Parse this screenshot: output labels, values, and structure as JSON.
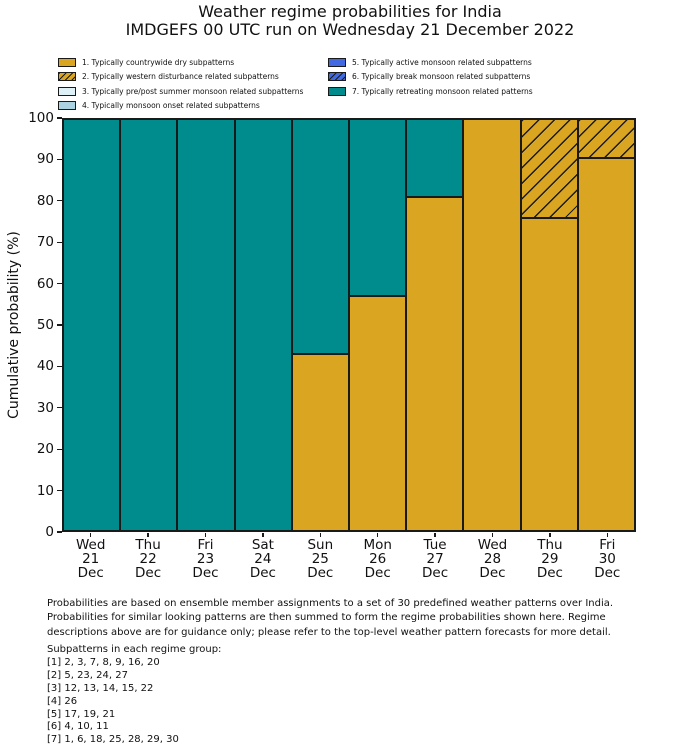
{
  "title": {
    "line1": "Weather regime probabilities for India",
    "line2": "IMDGEFS 00 UTC run on Wednesday 21 December 2022"
  },
  "colors": {
    "edge": "#1a1a1a",
    "text": "#111111",
    "regime1_dry": "#DAA521",
    "regime2_western_disturbance": "#DAA521",
    "regime3_prepost_summer": "#DEF1F7",
    "regime4_monsoon_onset": "#ABD3E2",
    "regime5_active_monsoon": "#4169E1",
    "regime6_break_monsoon": "#4169E1",
    "regime7_retreating_monsoon": "#008C8C"
  },
  "legend": {
    "items": [
      {
        "label": "1. Typically countrywide dry subpatterns",
        "color": "#DAA521",
        "hatch": false,
        "column": 0
      },
      {
        "label": "2. Typically western disturbance related subpatterns",
        "color": "#DAA521",
        "hatch": true,
        "column": 0
      },
      {
        "label": "3. Typically pre/post summer monsoon related subpatterns",
        "color": "#DEF1F7",
        "hatch": false,
        "column": 0
      },
      {
        "label": "4. Typically monsoon onset related subpatterns",
        "color": "#ABD3E2",
        "hatch": false,
        "column": 0
      },
      {
        "label": "5. Typically active monsoon related subpatterns",
        "color": "#4169E1",
        "hatch": false,
        "column": 1
      },
      {
        "label": "6. Typically break monsoon related subpatterns",
        "color": "#4169E1",
        "hatch": true,
        "column": 1
      },
      {
        "label": "7. Typically retreating monsoon related patterns",
        "color": "#008C8C",
        "hatch": false,
        "column": 1
      }
    ]
  },
  "chart_data": {
    "type": "bar",
    "stacked": true,
    "title": "Weather regime probabilities for India",
    "subtitle": "IMDGEFS 00 UTC run on Wednesday 21 December 2022",
    "xlabel": "",
    "ylabel": "Cumulative probability (%)",
    "ylim": [
      0,
      100
    ],
    "ytick_step": 10,
    "grid": false,
    "legend_position": "above-plot, two columns, frameless",
    "categories": [
      "Wed 21 Dec",
      "Thu 22 Dec",
      "Fri 23 Dec",
      "Sat 24 Dec",
      "Sun 25 Dec",
      "Mon 26 Dec",
      "Tue 27 Dec",
      "Wed 28 Dec",
      "Thu 29 Dec",
      "Fri 30 Dec"
    ],
    "x_tick_lines": [
      [
        "Wed",
        "21",
        "Dec"
      ],
      [
        "Thu",
        "22",
        "Dec"
      ],
      [
        "Fri",
        "23",
        "Dec"
      ],
      [
        "Sat",
        "24",
        "Dec"
      ],
      [
        "Sun",
        "25",
        "Dec"
      ],
      [
        "Mon",
        "26",
        "Dec"
      ],
      [
        "Tue",
        "27",
        "Dec"
      ],
      [
        "Wed",
        "28",
        "Dec"
      ],
      [
        "Thu",
        "29",
        "Dec"
      ],
      [
        "Fri",
        "30",
        "Dec"
      ]
    ],
    "series": [
      {
        "name": "1. Typically countrywide dry subpatterns",
        "color": "#DAA521",
        "hatch": false,
        "values": [
          0,
          0,
          0,
          0,
          43,
          57,
          81,
          100,
          76,
          90.5
        ]
      },
      {
        "name": "2. Typically western disturbance related subpatterns",
        "color": "#DAA521",
        "hatch": true,
        "values": [
          0,
          0,
          0,
          0,
          0,
          0,
          0,
          0,
          24,
          9.5
        ]
      },
      {
        "name": "3. Typically pre/post summer monsoon related subpatterns",
        "color": "#DEF1F7",
        "hatch": false,
        "values": [
          0,
          0,
          0,
          0,
          0,
          0,
          0,
          0,
          0,
          0
        ]
      },
      {
        "name": "4. Typically monsoon onset related subpatterns",
        "color": "#ABD3E2",
        "hatch": false,
        "values": [
          0,
          0,
          0,
          0,
          0,
          0,
          0,
          0,
          0,
          0
        ]
      },
      {
        "name": "5. Typically active monsoon related subpatterns",
        "color": "#4169E1",
        "hatch": false,
        "values": [
          0,
          0,
          0,
          0,
          0,
          0,
          0,
          0,
          0,
          0
        ]
      },
      {
        "name": "6. Typically break monsoon related subpatterns",
        "color": "#4169E1",
        "hatch": true,
        "values": [
          0,
          0,
          0,
          0,
          0,
          0,
          0,
          0,
          0,
          0
        ]
      },
      {
        "name": "7. Typically retreating monsoon related patterns",
        "color": "#008C8C",
        "hatch": false,
        "values": [
          100,
          100,
          100,
          100,
          57,
          43,
          19,
          0,
          0,
          0
        ]
      }
    ]
  },
  "footnote": {
    "lines": [
      "Probabilities are based on ensemble member assignments to a set of 30 predefined weather patterns over India.",
      "Probabilities for similar looking patterns are then summed to form the regime probabilities shown here. Regime",
      "descriptions above are for guidance only; please refer to the top-level weather pattern forecasts for more detail."
    ]
  },
  "subpatterns": {
    "heading": "Subpatterns in each regime group:",
    "lines": [
      "[1] 2, 3, 7, 8, 9, 16, 20",
      "[2] 5, 23, 24, 27",
      "[3] 12, 13, 14, 15, 22",
      "[4] 26",
      "[5] 17, 19, 21",
      "[6] 4, 10, 11",
      "[7] 1, 6, 18, 25, 28, 29, 30"
    ]
  }
}
